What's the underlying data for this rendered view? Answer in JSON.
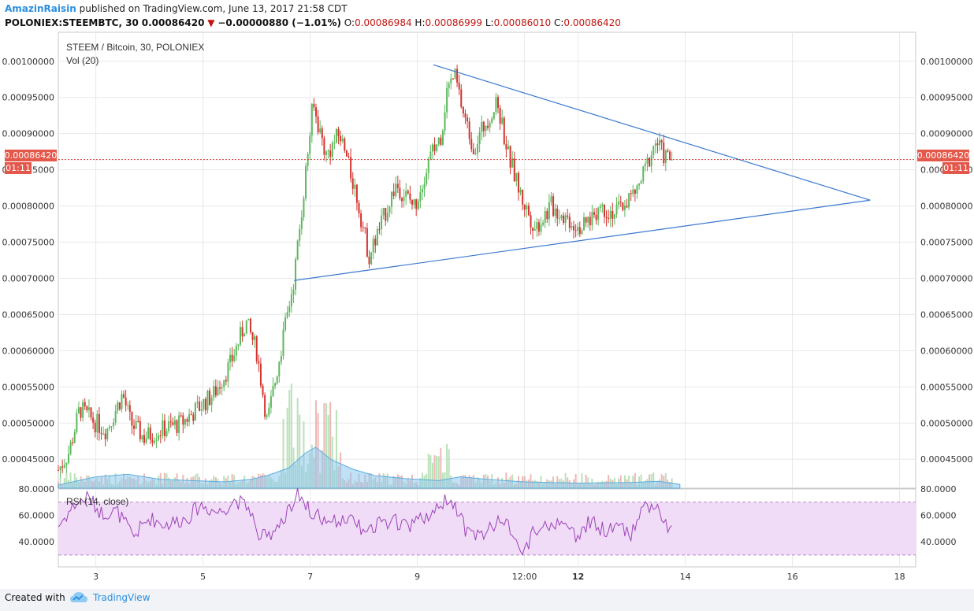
{
  "header": {
    "author": "AmazinRaisin",
    "published": "published on TradingView.com, June 13, 2017 21:58 CDT",
    "symbol": "POLONIEX:STEEMBTC, 30",
    "last": "0.00086420",
    "arrow": "▼",
    "change": "−0.00000880 (−1.01%)",
    "o_label": "O:",
    "o_value": "0.00086984",
    "h_label": "H:",
    "h_value": "0.00086999",
    "l_label": "L:",
    "l_value": "0.00086010",
    "c_label": "C:",
    "c_value": "0.00086420"
  },
  "pane": {
    "title": "STEEM / Bitcoin, 30, POLONIEX",
    "vol_label": "Vol (20)",
    "rsi_label": "RSI (14, close)"
  },
  "price_badge": {
    "value": "0.00086420",
    "timer": "01:11"
  },
  "footer": {
    "created": "Created with",
    "brand": "TradingView"
  },
  "colors": {
    "up": "#5cb85c",
    "down": "#d2342f",
    "trendline": "#3a78d0",
    "rsi_line": "#9c43b8",
    "rsi_band": "#f0dcf7",
    "vol_area": "#8ec9ef",
    "badge": "#e4584b",
    "grid": "#e8e8e8"
  },
  "chart_data": {
    "type": "candlestick",
    "symbol": "STEEM / Bitcoin",
    "interval": "30",
    "exchange": "POLONIEX",
    "price_axis": {
      "range": [
        0.00041,
        0.00104
      ],
      "ticks": [
        "0.00045000",
        "0.00050000",
        "0.00055000",
        "0.00060000",
        "0.00065000",
        "0.00070000",
        "0.00075000",
        "0.00080000",
        "0.00085000",
        "0.00090000",
        "0.00095000",
        "0.00100000"
      ]
    },
    "time_axis": {
      "range_days": [
        2.3,
        18.3
      ],
      "ticks": [
        {
          "label": "3",
          "day": 3.0
        },
        {
          "label": "5",
          "day": 5.0
        },
        {
          "label": "7",
          "day": 7.0
        },
        {
          "label": "9",
          "day": 9.0
        },
        {
          "label": "12:00",
          "day": 11.0
        },
        {
          "label": "12",
          "day": 12.0,
          "bold": true
        },
        {
          "label": "14",
          "day": 14.0
        },
        {
          "label": "16",
          "day": 16.0
        },
        {
          "label": "18",
          "day": 18.0
        }
      ]
    },
    "price_path": [
      [
        2.3,
        0.000435
      ],
      [
        2.5,
        0.00046
      ],
      [
        2.7,
        0.00052
      ],
      [
        3.0,
        0.0005
      ],
      [
        3.2,
        0.00049
      ],
      [
        3.5,
        0.00054
      ],
      [
        3.65,
        0.0005
      ],
      [
        3.9,
        0.00048
      ],
      [
        4.2,
        0.00049
      ],
      [
        4.6,
        0.0005
      ],
      [
        4.9,
        0.00052
      ],
      [
        5.2,
        0.00054
      ],
      [
        5.5,
        0.00058
      ],
      [
        5.8,
        0.00064
      ],
      [
        6.0,
        0.0006
      ],
      [
        6.2,
        0.0005
      ],
      [
        6.45,
        0.0006
      ],
      [
        6.7,
        0.0007
      ],
      [
        6.85,
        0.0008
      ],
      [
        7.05,
        0.00094
      ],
      [
        7.3,
        0.00087
      ],
      [
        7.55,
        0.0009
      ],
      [
        7.85,
        0.00082
      ],
      [
        8.1,
        0.00073
      ],
      [
        8.35,
        0.00078
      ],
      [
        8.6,
        0.00083
      ],
      [
        8.95,
        0.0008
      ],
      [
        9.2,
        0.00086
      ],
      [
        9.45,
        0.0009
      ],
      [
        9.55,
        0.00096
      ],
      [
        9.7,
        0.00098
      ],
      [
        9.85,
        0.00093
      ],
      [
        10.05,
        0.00088
      ],
      [
        10.3,
        0.00092
      ],
      [
        10.5,
        0.00094
      ],
      [
        10.7,
        0.00087
      ],
      [
        10.95,
        0.00081
      ],
      [
        11.2,
        0.00077
      ],
      [
        11.5,
        0.0008
      ],
      [
        11.85,
        0.00078
      ],
      [
        12.1,
        0.00077
      ],
      [
        12.4,
        0.0008
      ],
      [
        12.7,
        0.00079
      ],
      [
        12.95,
        0.00081
      ],
      [
        13.1,
        0.00082
      ],
      [
        13.3,
        0.00086
      ],
      [
        13.45,
        0.00089
      ],
      [
        13.6,
        0.00087
      ],
      [
        13.75,
        0.0008642
      ]
    ],
    "current_price": 0.0008642,
    "trendlines": [
      {
        "name": "upper",
        "from": [
          9.3,
          0.000995
        ],
        "to": [
          17.45,
          0.000808
        ]
      },
      {
        "name": "lower",
        "from": [
          6.7,
          0.000697
        ],
        "to": [
          17.45,
          0.000808
        ]
      }
    ],
    "volume": {
      "label": "Vol (20)",
      "ma_path": [
        [
          2.3,
          0.05
        ],
        [
          3.0,
          0.18
        ],
        [
          3.6,
          0.22
        ],
        [
          4.2,
          0.14
        ],
        [
          4.8,
          0.12
        ],
        [
          5.4,
          0.1
        ],
        [
          5.9,
          0.14
        ],
        [
          6.2,
          0.2
        ],
        [
          6.6,
          0.32
        ],
        [
          6.9,
          0.55
        ],
        [
          7.1,
          0.65
        ],
        [
          7.4,
          0.45
        ],
        [
          7.8,
          0.3
        ],
        [
          8.2,
          0.2
        ],
        [
          8.8,
          0.15
        ],
        [
          9.4,
          0.12
        ],
        [
          9.8,
          0.18
        ],
        [
          10.3,
          0.14
        ],
        [
          11.0,
          0.1
        ],
        [
          12.0,
          0.08
        ],
        [
          13.0,
          0.09
        ],
        [
          13.5,
          0.11
        ],
        [
          13.9,
          0.06
        ]
      ]
    },
    "rsi": {
      "label": "RSI (14, close)",
      "axis_ticks": [
        "80.0000",
        "60.0000",
        "40.0000"
      ],
      "range": [
        21,
        80
      ],
      "bands": [
        30,
        70
      ],
      "path": [
        [
          2.3,
          52
        ],
        [
          2.6,
          68
        ],
        [
          2.85,
          74
        ],
        [
          3.1,
          62
        ],
        [
          3.4,
          63
        ],
        [
          3.7,
          44
        ],
        [
          4.0,
          58
        ],
        [
          4.3,
          53
        ],
        [
          4.7,
          58
        ],
        [
          4.95,
          68
        ],
        [
          5.3,
          62
        ],
        [
          5.6,
          72
        ],
        [
          5.9,
          64
        ],
        [
          6.0,
          45
        ],
        [
          6.2,
          43
        ],
        [
          6.4,
          54
        ],
        [
          6.55,
          60
        ],
        [
          6.75,
          78
        ],
        [
          7.0,
          63
        ],
        [
          7.3,
          55
        ],
        [
          7.6,
          58
        ],
        [
          7.85,
          54
        ],
        [
          8.05,
          45
        ],
        [
          8.3,
          55
        ],
        [
          8.6,
          55
        ],
        [
          8.9,
          52
        ],
        [
          9.2,
          60
        ],
        [
          9.45,
          70
        ],
        [
          9.65,
          72
        ],
        [
          9.8,
          58
        ],
        [
          9.95,
          45
        ],
        [
          10.3,
          47
        ],
        [
          10.55,
          60
        ],
        [
          10.8,
          47
        ],
        [
          10.95,
          30
        ],
        [
          11.2,
          50
        ],
        [
          11.5,
          53
        ],
        [
          11.75,
          55
        ],
        [
          11.95,
          42
        ],
        [
          12.2,
          55
        ],
        [
          12.5,
          49
        ],
        [
          12.75,
          52
        ],
        [
          13.0,
          45
        ],
        [
          13.2,
          67
        ],
        [
          13.45,
          68
        ],
        [
          13.6,
          55
        ],
        [
          13.75,
          47
        ],
        [
          13.9,
          52
        ]
      ]
    }
  }
}
